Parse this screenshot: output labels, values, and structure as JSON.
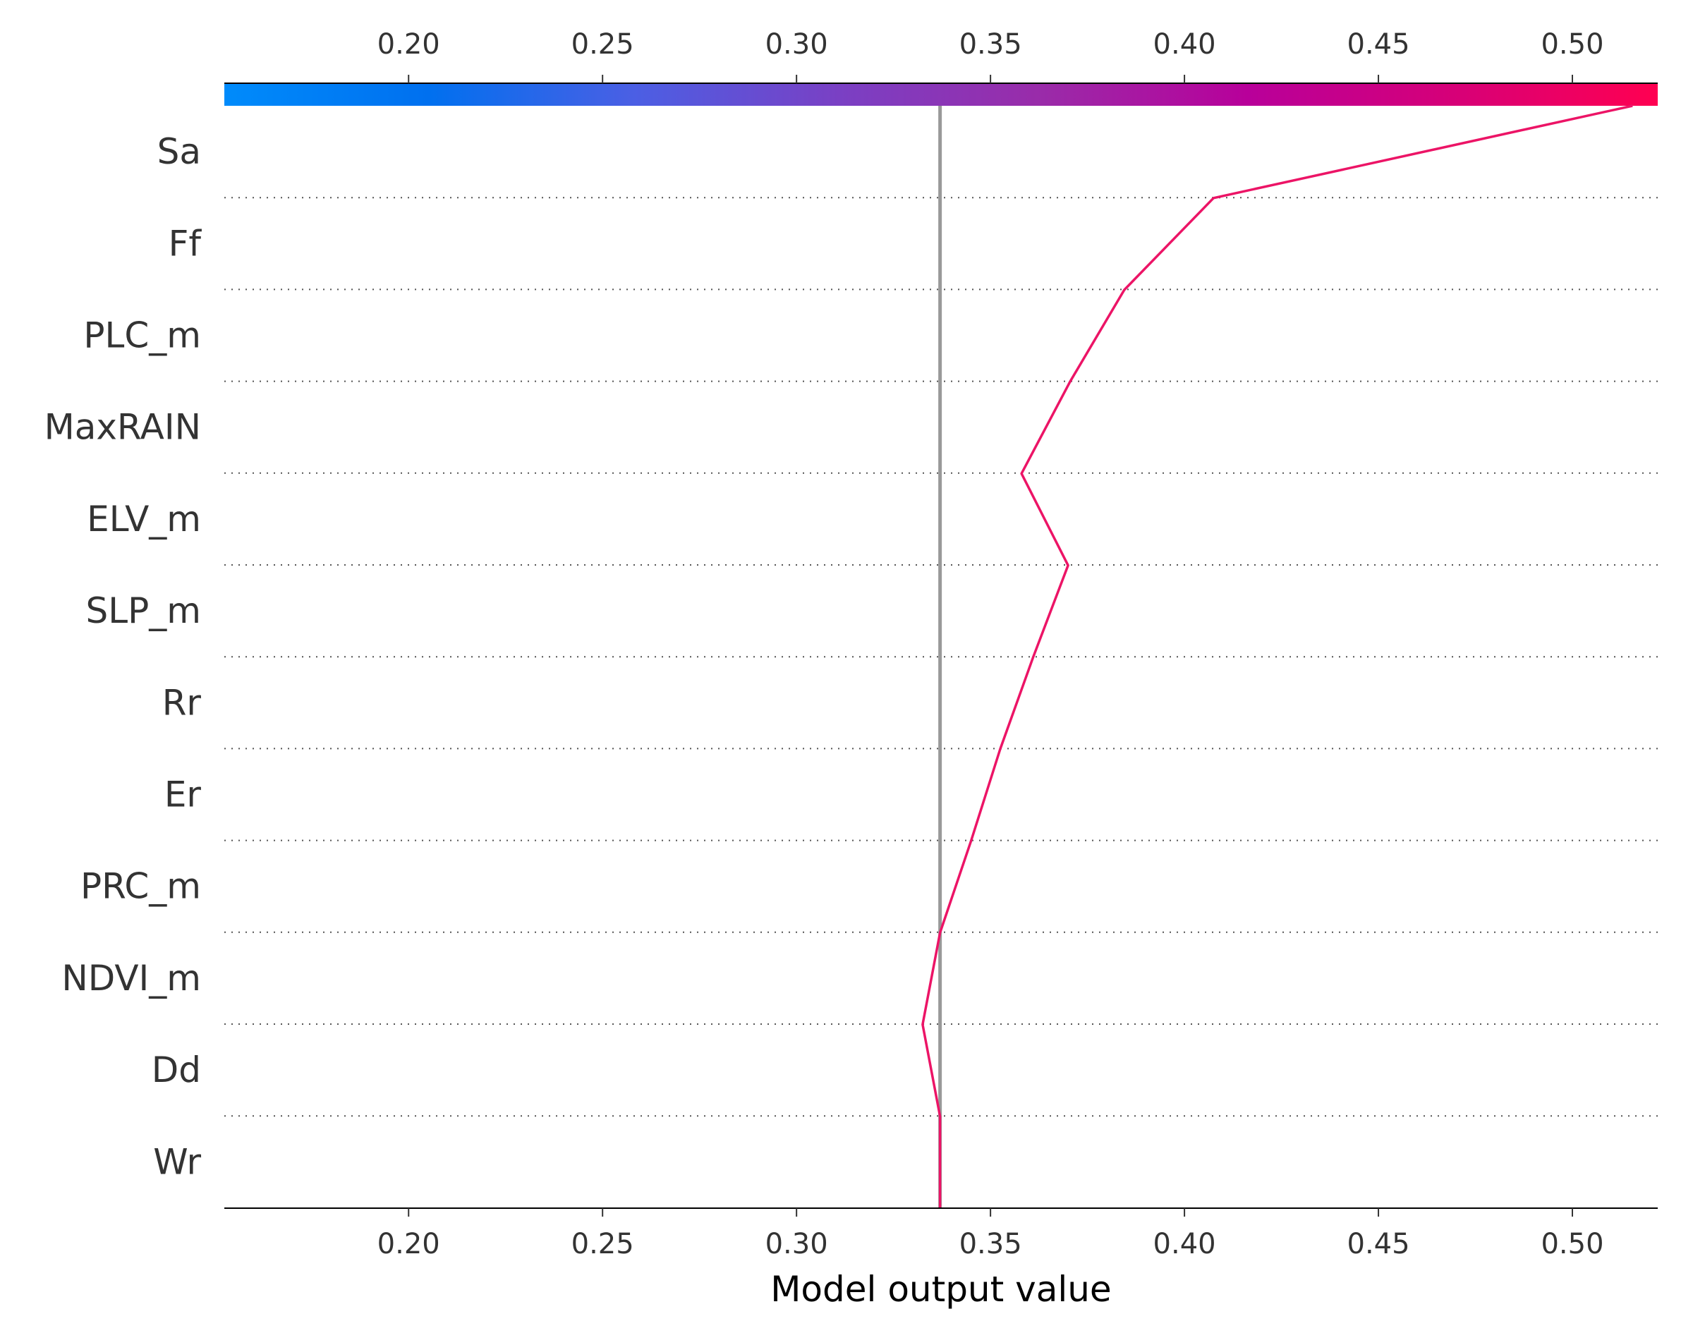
{
  "chart_data": {
    "type": "line",
    "chart_kind": "shap-decision-plot",
    "xlabel": "Model output value",
    "xlim": [
      0.1525,
      0.522
    ],
    "xticks": [
      0.2,
      0.25,
      0.3,
      0.35,
      0.4,
      0.45,
      0.5
    ],
    "xtick_labels": [
      "0.20",
      "0.25",
      "0.30",
      "0.35",
      "0.40",
      "0.45",
      "0.50"
    ],
    "features": [
      "Sa",
      "Ff",
      "PLC_m",
      "MaxRAIN",
      "ELV_m",
      "SLP_m",
      "Rr",
      "Er",
      "PRC_m",
      "NDVI_m",
      "Dd",
      "Wr"
    ],
    "base_value": 0.337,
    "path": {
      "feature_order_bottom_to_top": [
        "Wr",
        "Dd",
        "NDVI_m",
        "PRC_m",
        "Er",
        "Rr",
        "SLP_m",
        "ELV_m",
        "MaxRAIN",
        "PLC_m",
        "Ff",
        "Sa"
      ],
      "values_bottom_to_top": [
        0.337,
        0.337,
        0.3325,
        0.337,
        0.345,
        0.3525,
        0.361,
        0.37,
        0.358,
        0.3705,
        0.3845,
        0.4075,
        0.5155
      ]
    },
    "colorbar": {
      "range": [
        0.1525,
        0.522
      ],
      "gradient": [
        "#008bfb",
        "#0070ef",
        "#4b5fe4",
        "#7a40c4",
        "#9a2ba9",
        "#b8009a",
        "#d60078",
        "#ff0051"
      ]
    },
    "colors": {
      "line": "#ec1466",
      "base_line": "#999999",
      "grid": "#555555"
    },
    "grid": "dotted-horizontal"
  }
}
